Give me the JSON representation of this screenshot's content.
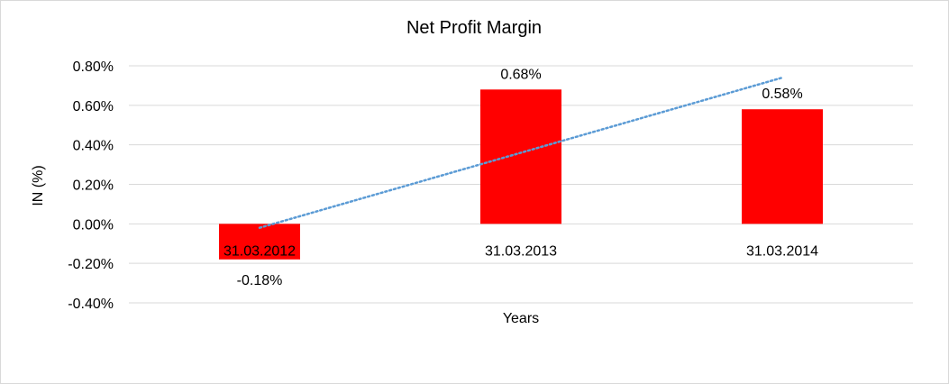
{
  "chart_data": {
    "type": "bar",
    "title": "Net Profit Margin",
    "xlabel": "Years",
    "ylabel": "IN (%)",
    "categories": [
      "31.03.2012",
      "31.03.2013",
      "31.03.2014"
    ],
    "values": [
      -0.18,
      0.68,
      0.58
    ],
    "value_labels": [
      "-0.18%",
      "0.68%",
      "0.58%"
    ],
    "ylim": [
      -0.4,
      0.8
    ],
    "yticks": [
      0.8,
      0.6,
      0.4,
      0.2,
      0.0,
      -0.2,
      -0.4
    ],
    "ytick_labels": [
      "0.80%",
      "0.60%",
      "0.40%",
      "0.20%",
      "0.00%",
      "-0.20%",
      "-0.40%"
    ],
    "grid": true,
    "legend": "none",
    "trendline": {
      "type": "linear",
      "style": "dotted",
      "color": "#5b9bd5"
    },
    "colors": {
      "bar": "#ff0000",
      "trendline": "#5b9bd5",
      "grid": "#d9d9d9"
    }
  }
}
